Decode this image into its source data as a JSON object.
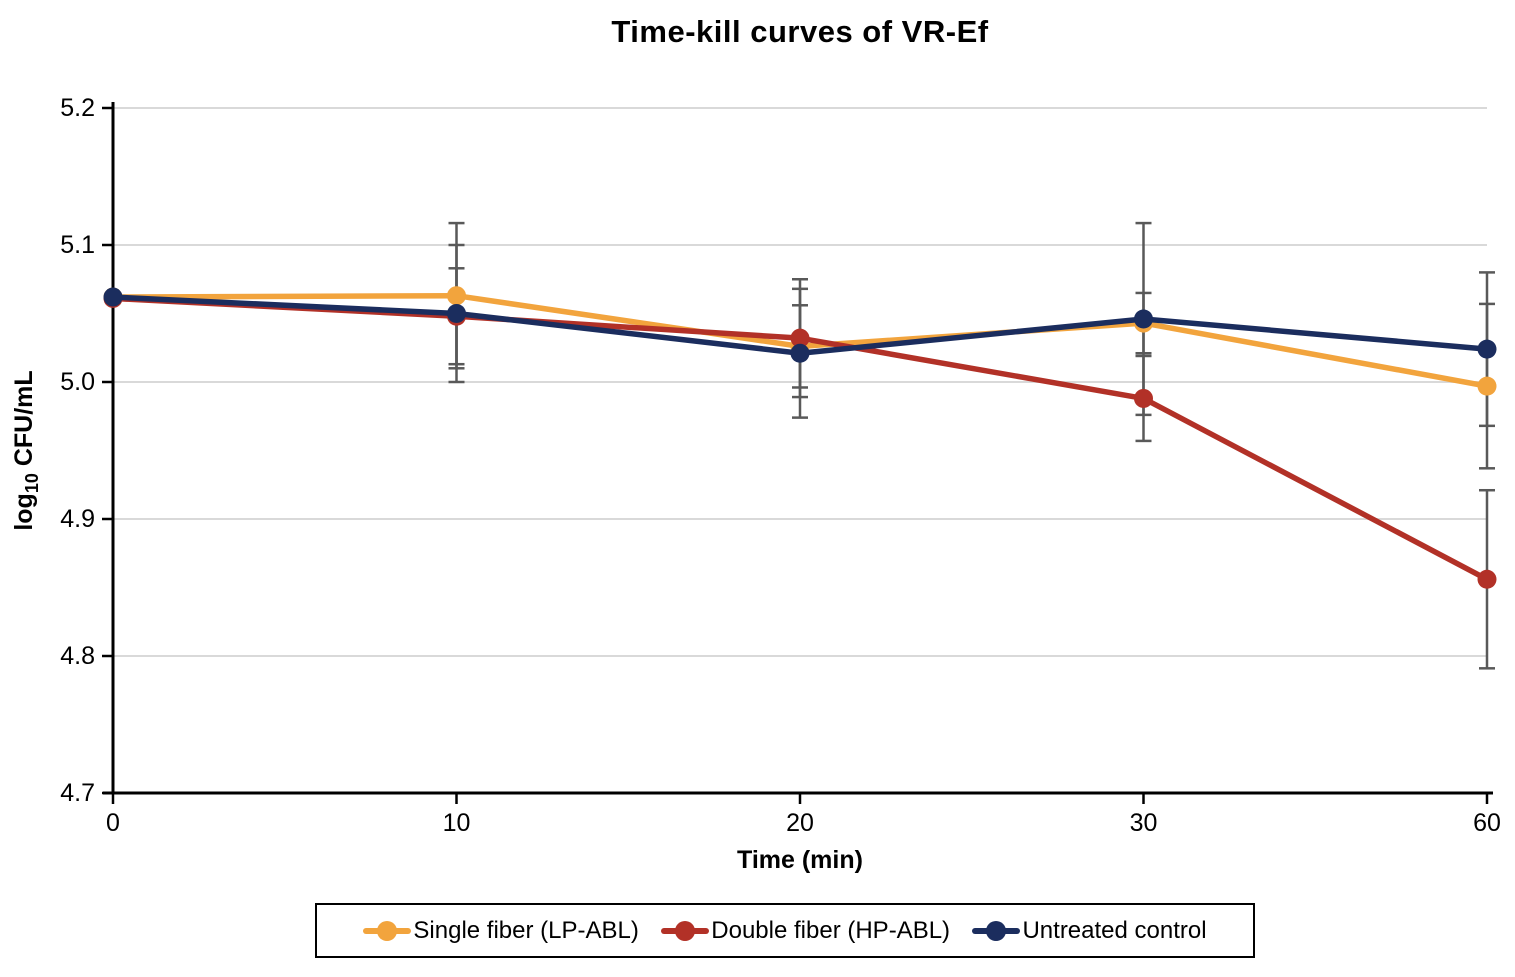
{
  "page": {
    "background": "#FFFFFF"
  },
  "chart_data": {
    "type": "line",
    "title": "Time-kill curves of VR-Ef",
    "xlabel": "Time (min)",
    "ylabel": {
      "prefix": "log",
      "subscript": "10",
      "suffix": " CFU/mL"
    },
    "x_categories": [
      "0",
      "10",
      "20",
      "30",
      "60"
    ],
    "ylim": [
      4.7,
      5.2
    ],
    "yticks": [
      "5.2",
      "5.1",
      "5.0",
      "4.9",
      "4.8",
      "4.7"
    ],
    "grid": "horizontal",
    "gridline_color": "#D9D9D9",
    "axis_color": "#000000",
    "error_bar_color": "#595959",
    "legend_position": "bottom",
    "series": [
      {
        "name": "Single fiber (LP-ABL)",
        "color": "#F2A43D",
        "values": [
          5.062,
          5.063,
          5.026,
          5.043,
          4.997
        ],
        "errors": [
          0,
          0.053,
          0.03,
          0.022,
          0.06
        ]
      },
      {
        "name": "Double fiber (HP-ABL)",
        "color": "#B23127",
        "values": [
          5.061,
          5.048,
          5.032,
          4.988,
          4.856
        ],
        "errors": [
          0,
          0.035,
          0.043,
          0.031,
          0.065
        ]
      },
      {
        "name": "Untreated control",
        "color": "#1B2D5E",
        "values": [
          5.062,
          5.05,
          5.021,
          5.046,
          5.024
        ],
        "errors": [
          0,
          0.05,
          0.047,
          0.07,
          0.056
        ]
      }
    ]
  }
}
